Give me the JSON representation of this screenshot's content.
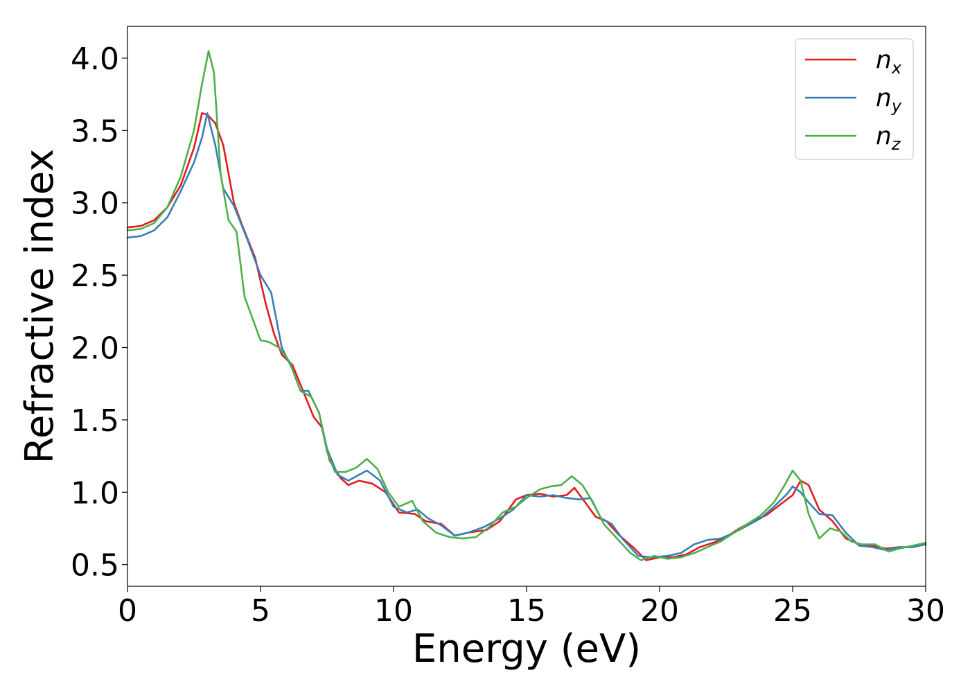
{
  "chart_data": {
    "type": "line",
    "xlabel": "Energy (eV)",
    "ylabel": "Refractive index",
    "xlim": [
      0,
      30
    ],
    "ylim": [
      0.35,
      4.22
    ],
    "xticks": [
      {
        "value": 0,
        "label": "0"
      },
      {
        "value": 5,
        "label": "5"
      },
      {
        "value": 10,
        "label": "10"
      },
      {
        "value": 15,
        "label": "15"
      },
      {
        "value": 20,
        "label": "20"
      },
      {
        "value": 25,
        "label": "25"
      },
      {
        "value": 30,
        "label": "30"
      }
    ],
    "yticks": [
      {
        "value": 0.5,
        "label": "0.5"
      },
      {
        "value": 1.0,
        "label": "1.0"
      },
      {
        "value": 1.5,
        "label": "1.5"
      },
      {
        "value": 2.0,
        "label": "2.0"
      },
      {
        "value": 2.5,
        "label": "2.5"
      },
      {
        "value": 3.0,
        "label": "3.0"
      },
      {
        "value": 3.5,
        "label": "3.5"
      },
      {
        "value": 4.0,
        "label": "4.0"
      }
    ],
    "grid": false,
    "legend_position": "top-right",
    "series": [
      {
        "name": "n",
        "subscript": "x",
        "color": "#e41a1c",
        "points": [
          [
            0,
            2.83
          ],
          [
            0.5,
            2.84
          ],
          [
            1.0,
            2.88
          ],
          [
            1.5,
            2.97
          ],
          [
            2.0,
            3.12
          ],
          [
            2.5,
            3.38
          ],
          [
            2.8,
            3.62
          ],
          [
            3.0,
            3.61
          ],
          [
            3.3,
            3.55
          ],
          [
            3.6,
            3.4
          ],
          [
            4.0,
            3.0
          ],
          [
            4.3,
            2.85
          ],
          [
            4.8,
            2.62
          ],
          [
            5.2,
            2.3
          ],
          [
            5.5,
            2.1
          ],
          [
            5.8,
            1.95
          ],
          [
            6.2,
            1.88
          ],
          [
            6.6,
            1.7
          ],
          [
            7.0,
            1.52
          ],
          [
            7.3,
            1.45
          ],
          [
            7.6,
            1.22
          ],
          [
            8.0,
            1.1
          ],
          [
            8.3,
            1.05
          ],
          [
            8.7,
            1.08
          ],
          [
            9.2,
            1.06
          ],
          [
            9.7,
            1.0
          ],
          [
            10.2,
            0.86
          ],
          [
            10.8,
            0.85
          ],
          [
            11.2,
            0.8
          ],
          [
            11.8,
            0.78
          ],
          [
            12.3,
            0.7
          ],
          [
            12.8,
            0.72
          ],
          [
            13.5,
            0.74
          ],
          [
            14.0,
            0.8
          ],
          [
            14.6,
            0.95
          ],
          [
            15.0,
            0.98
          ],
          [
            15.5,
            0.99
          ],
          [
            16.0,
            0.97
          ],
          [
            16.5,
            0.98
          ],
          [
            16.8,
            1.03
          ],
          [
            17.2,
            0.93
          ],
          [
            17.6,
            0.83
          ],
          [
            18.0,
            0.8
          ],
          [
            18.5,
            0.7
          ],
          [
            19.0,
            0.62
          ],
          [
            19.5,
            0.53
          ],
          [
            20.0,
            0.55
          ],
          [
            20.5,
            0.55
          ],
          [
            21.0,
            0.57
          ],
          [
            21.5,
            0.62
          ],
          [
            22.0,
            0.65
          ],
          [
            22.5,
            0.69
          ],
          [
            23.0,
            0.75
          ],
          [
            23.5,
            0.8
          ],
          [
            24.0,
            0.84
          ],
          [
            24.5,
            0.91
          ],
          [
            25.0,
            0.98
          ],
          [
            25.3,
            1.08
          ],
          [
            25.6,
            1.05
          ],
          [
            26.0,
            0.88
          ],
          [
            26.5,
            0.8
          ],
          [
            27.0,
            0.68
          ],
          [
            27.5,
            0.64
          ],
          [
            28.0,
            0.63
          ],
          [
            28.5,
            0.61
          ],
          [
            29.0,
            0.62
          ],
          [
            29.5,
            0.62
          ],
          [
            30.0,
            0.64
          ]
        ]
      },
      {
        "name": "n",
        "subscript": "y",
        "color": "#377eb8",
        "points": [
          [
            0,
            2.76
          ],
          [
            0.5,
            2.77
          ],
          [
            1.0,
            2.81
          ],
          [
            1.5,
            2.9
          ],
          [
            2.0,
            3.08
          ],
          [
            2.5,
            3.28
          ],
          [
            2.8,
            3.45
          ],
          [
            3.0,
            3.62
          ],
          [
            3.3,
            3.4
          ],
          [
            3.6,
            3.1
          ],
          [
            4.0,
            2.98
          ],
          [
            4.5,
            2.75
          ],
          [
            5.0,
            2.5
          ],
          [
            5.4,
            2.38
          ],
          [
            5.8,
            2.0
          ],
          [
            6.2,
            1.85
          ],
          [
            6.5,
            1.7
          ],
          [
            6.8,
            1.7
          ],
          [
            7.2,
            1.55
          ],
          [
            7.5,
            1.3
          ],
          [
            7.9,
            1.12
          ],
          [
            8.3,
            1.08
          ],
          [
            8.7,
            1.12
          ],
          [
            9.0,
            1.15
          ],
          [
            9.5,
            1.08
          ],
          [
            10.0,
            0.9
          ],
          [
            10.5,
            0.86
          ],
          [
            10.9,
            0.88
          ],
          [
            11.3,
            0.82
          ],
          [
            11.8,
            0.77
          ],
          [
            12.3,
            0.7
          ],
          [
            12.8,
            0.72
          ],
          [
            13.4,
            0.76
          ],
          [
            14.0,
            0.82
          ],
          [
            14.5,
            0.88
          ],
          [
            15.0,
            0.98
          ],
          [
            15.5,
            0.97
          ],
          [
            16.0,
            0.98
          ],
          [
            16.5,
            0.96
          ],
          [
            17.0,
            0.95
          ],
          [
            17.4,
            0.96
          ],
          [
            17.8,
            0.82
          ],
          [
            18.2,
            0.78
          ],
          [
            18.6,
            0.68
          ],
          [
            19.2,
            0.56
          ],
          [
            19.7,
            0.55
          ],
          [
            20.3,
            0.56
          ],
          [
            20.8,
            0.58
          ],
          [
            21.3,
            0.64
          ],
          [
            21.8,
            0.67
          ],
          [
            22.3,
            0.68
          ],
          [
            22.8,
            0.72
          ],
          [
            23.3,
            0.77
          ],
          [
            23.8,
            0.82
          ],
          [
            24.3,
            0.9
          ],
          [
            24.8,
            0.99
          ],
          [
            25.0,
            1.04
          ],
          [
            25.3,
            1.0
          ],
          [
            25.6,
            0.93
          ],
          [
            26.0,
            0.85
          ],
          [
            26.5,
            0.84
          ],
          [
            27.0,
            0.72
          ],
          [
            27.5,
            0.63
          ],
          [
            28.0,
            0.62
          ],
          [
            28.5,
            0.6
          ],
          [
            29.0,
            0.62
          ],
          [
            29.5,
            0.62
          ],
          [
            30.0,
            0.64
          ]
        ]
      },
      {
        "name": "n",
        "subscript": "z",
        "color": "#4daf4a",
        "points": [
          [
            0,
            2.81
          ],
          [
            0.5,
            2.82
          ],
          [
            1.0,
            2.86
          ],
          [
            1.5,
            2.97
          ],
          [
            2.0,
            3.18
          ],
          [
            2.5,
            3.5
          ],
          [
            2.8,
            3.82
          ],
          [
            3.05,
            4.05
          ],
          [
            3.25,
            3.9
          ],
          [
            3.5,
            3.2
          ],
          [
            3.8,
            2.88
          ],
          [
            4.1,
            2.8
          ],
          [
            4.4,
            2.35
          ],
          [
            4.7,
            2.2
          ],
          [
            5.0,
            2.05
          ],
          [
            5.3,
            2.04
          ],
          [
            5.7,
            2.0
          ],
          [
            6.1,
            1.9
          ],
          [
            6.5,
            1.7
          ],
          [
            6.9,
            1.66
          ],
          [
            7.2,
            1.55
          ],
          [
            7.5,
            1.28
          ],
          [
            7.8,
            1.14
          ],
          [
            8.2,
            1.14
          ],
          [
            8.6,
            1.17
          ],
          [
            9.0,
            1.23
          ],
          [
            9.4,
            1.16
          ],
          [
            9.8,
            1.0
          ],
          [
            10.2,
            0.9
          ],
          [
            10.7,
            0.94
          ],
          [
            11.1,
            0.8
          ],
          [
            11.6,
            0.72
          ],
          [
            12.1,
            0.69
          ],
          [
            12.6,
            0.68
          ],
          [
            13.1,
            0.69
          ],
          [
            13.6,
            0.76
          ],
          [
            14.1,
            0.86
          ],
          [
            14.6,
            0.9
          ],
          [
            15.0,
            0.96
          ],
          [
            15.5,
            1.02
          ],
          [
            15.9,
            1.04
          ],
          [
            16.3,
            1.05
          ],
          [
            16.7,
            1.11
          ],
          [
            17.1,
            1.05
          ],
          [
            17.5,
            0.93
          ],
          [
            17.9,
            0.78
          ],
          [
            18.4,
            0.68
          ],
          [
            18.9,
            0.58
          ],
          [
            19.3,
            0.53
          ],
          [
            19.8,
            0.56
          ],
          [
            20.3,
            0.54
          ],
          [
            20.8,
            0.55
          ],
          [
            21.3,
            0.58
          ],
          [
            21.8,
            0.62
          ],
          [
            22.3,
            0.66
          ],
          [
            22.8,
            0.72
          ],
          [
            23.3,
            0.78
          ],
          [
            23.8,
            0.84
          ],
          [
            24.3,
            0.93
          ],
          [
            24.7,
            1.05
          ],
          [
            25.0,
            1.15
          ],
          [
            25.3,
            1.08
          ],
          [
            25.6,
            0.85
          ],
          [
            26.0,
            0.68
          ],
          [
            26.4,
            0.75
          ],
          [
            26.8,
            0.73
          ],
          [
            27.2,
            0.66
          ],
          [
            27.6,
            0.64
          ],
          [
            28.1,
            0.64
          ],
          [
            28.6,
            0.59
          ],
          [
            29.0,
            0.61
          ],
          [
            29.5,
            0.63
          ],
          [
            30.0,
            0.65
          ]
        ]
      }
    ]
  }
}
